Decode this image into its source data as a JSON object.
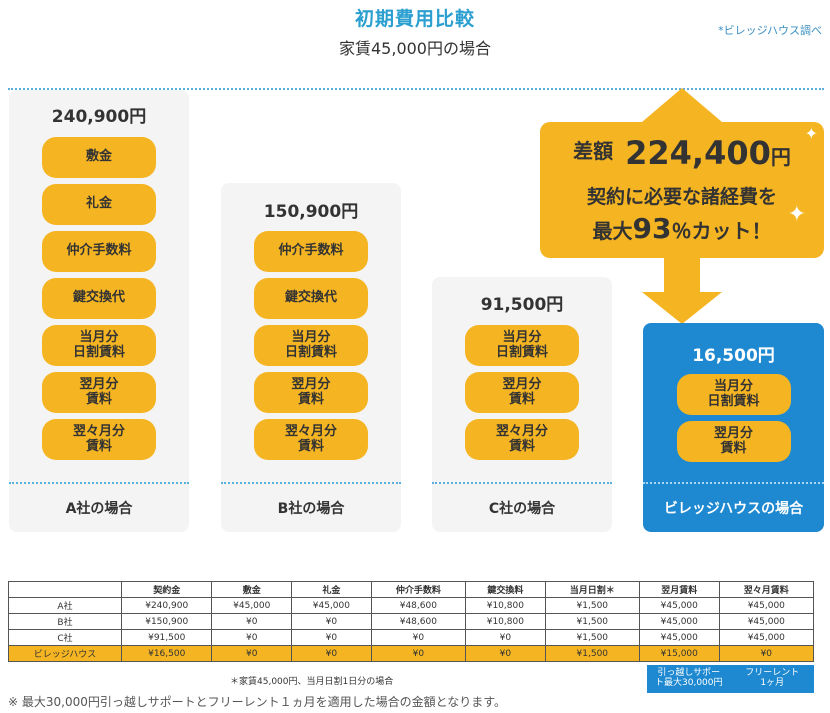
{
  "header": {
    "title": "初期費用比較",
    "subtitle": "家賃45,000円の場合",
    "source": "*ビレッジハウス調べ"
  },
  "columns": [
    {
      "total": "240,900円",
      "label": "A社の場合",
      "items": [
        "敷金",
        "礼金",
        "仲介手数料",
        "鍵交換代",
        "当月分\n日割賃料",
        "翌月分\n賃料",
        "翌々月分\n賃料"
      ]
    },
    {
      "total": "150,900円",
      "label": "B社の場合",
      "items": [
        "仲介手数料",
        "鍵交換代",
        "当月分\n日割賃料",
        "翌月分\n賃料",
        "翌々月分\n賃料"
      ]
    },
    {
      "total": "91,500円",
      "label": "C社の場合",
      "items": [
        "当月分\n日割賃料",
        "翌月分\n賃料",
        "翌々月分\n賃料"
      ]
    },
    {
      "total": "16,500円",
      "label": "ビレッジハウスの場合",
      "items": [
        "当月分\n日割賃料",
        "翌月分\n賃料"
      ]
    }
  ],
  "callout": {
    "diff_label": "差額",
    "diff_amount": "224,400",
    "diff_unit": "円",
    "line2": "契約に必要な諸経費を",
    "line3_pre": "最大",
    "line3_pct": "93",
    "line3_post": "％カット！"
  },
  "table": {
    "headers": [
      "",
      "契約金",
      "敷金",
      "礼金",
      "仲介手数料",
      "鍵交換料",
      "当月日割＊",
      "翌月賃料",
      "翌々月賃料"
    ],
    "rows": [
      [
        "A社",
        "¥240,900",
        "¥45,000",
        "¥45,000",
        "¥48,600",
        "¥10,800",
        "¥1,500",
        "¥45,000",
        "¥45,000"
      ],
      [
        "B社",
        "¥150,900",
        "¥0",
        "¥0",
        "¥48,600",
        "¥10,800",
        "¥1,500",
        "¥45,000",
        "¥45,000"
      ],
      [
        "C社",
        "¥91,500",
        "¥0",
        "¥0",
        "¥0",
        "¥0",
        "¥1,500",
        "¥45,000",
        "¥45,000"
      ],
      [
        "ビレッジハウス",
        "¥16,500",
        "¥0",
        "¥0",
        "¥0",
        "¥0",
        "¥1,500",
        "¥15,000",
        "¥0"
      ]
    ],
    "note": "＊家賃45,000円、当月日割1日分の場合",
    "extra": [
      "引っ越しサポー\nト最大30,000円",
      "フリーレント\n1ヶ月"
    ]
  },
  "footnote": "※ 最大30,000円引っ越しサポートとフリーレント１ヵ月を適用した場合の金額となります。",
  "colors": {
    "accent_yellow": "#f5b522",
    "brand_blue": "#1e88d0",
    "title_blue": "#2a9fd0"
  }
}
